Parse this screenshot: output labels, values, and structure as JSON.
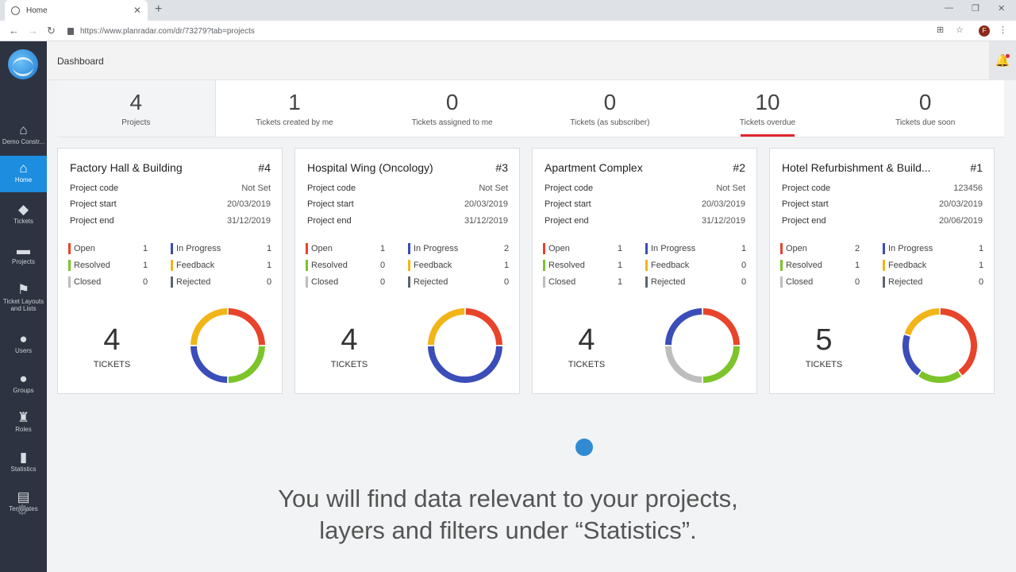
{
  "browser": {
    "tab_title": "Home",
    "url": "https://www.planradar.com/dr/73279?tab=projects",
    "profile_initial": "F"
  },
  "sidebar": {
    "items": [
      {
        "label": "Demo Constr...",
        "icon": "house-icon"
      },
      {
        "label": "Home",
        "icon": "house-icon",
        "active": true
      },
      {
        "label": "Tickets",
        "icon": "tags-icon"
      },
      {
        "label": "Projects",
        "icon": "monitor-icon"
      },
      {
        "label": "Ticket Layouts and Lists",
        "icon": "flag-icon"
      },
      {
        "label": "Users",
        "icon": "user-icon"
      },
      {
        "label": "Groups",
        "icon": "user-icon"
      },
      {
        "label": "Roles",
        "icon": "stamp-icon"
      },
      {
        "label": "Statistics",
        "icon": "bar-chart-icon"
      },
      {
        "label": "Templates",
        "icon": "clipboard-icon"
      }
    ]
  },
  "header": {
    "title": "Dashboard"
  },
  "stats": [
    {
      "value": "4",
      "label": "Projects"
    },
    {
      "value": "1",
      "label": "Tickets created by me"
    },
    {
      "value": "0",
      "label": "Tickets assigned to me"
    },
    {
      "value": "0",
      "label": "Tickets (as subscriber)"
    },
    {
      "value": "10",
      "label": "Tickets overdue"
    },
    {
      "value": "0",
      "label": "Tickets due soon"
    }
  ],
  "field_labels": {
    "code": "Project code",
    "start": "Project start",
    "end": "Project end",
    "tickets": "TICKETS"
  },
  "status_labels": {
    "open": "Open",
    "in_progress": "In Progress",
    "resolved": "Resolved",
    "feedback": "Feedback",
    "closed": "Closed",
    "rejected": "Rejected"
  },
  "status_colors": {
    "open": "#e8442b",
    "in_progress": "#3b4db8",
    "resolved": "#7cc42a",
    "feedback": "#f2b517",
    "closed": "#bdbdbd",
    "rejected": "#5d6470"
  },
  "projects": [
    {
      "name": "Factory Hall & Building",
      "number": "#4",
      "code": "Not Set",
      "start": "20/03/2019",
      "end": "31/12/2019",
      "counts": {
        "open": "1",
        "in_progress": "1",
        "resolved": "1",
        "feedback": "1",
        "closed": "0",
        "rejected": "0"
      },
      "total": "4"
    },
    {
      "name": "Hospital Wing (Oncology)",
      "number": "#3",
      "code": "Not Set",
      "start": "20/03/2019",
      "end": "31/12/2019",
      "counts": {
        "open": "1",
        "in_progress": "2",
        "resolved": "0",
        "feedback": "1",
        "closed": "0",
        "rejected": "0"
      },
      "total": "4"
    },
    {
      "name": "Apartment Complex",
      "number": "#2",
      "code": "Not Set",
      "start": "20/03/2019",
      "end": "31/12/2019",
      "counts": {
        "open": "1",
        "in_progress": "1",
        "resolved": "1",
        "feedback": "0",
        "closed": "1",
        "rejected": "0"
      },
      "total": "4"
    },
    {
      "name": "Hotel Refurbishment & Build...",
      "number": "#1",
      "code": "123456",
      "start": "20/03/2019",
      "end": "20/06/2019",
      "counts": {
        "open": "2",
        "in_progress": "1",
        "resolved": "1",
        "feedback": "1",
        "closed": "0",
        "rejected": "0"
      },
      "total": "5"
    }
  ],
  "caption": {
    "line1": "You will find data relevant to your projects,",
    "line2": "layers and filters under “Statistics”."
  }
}
